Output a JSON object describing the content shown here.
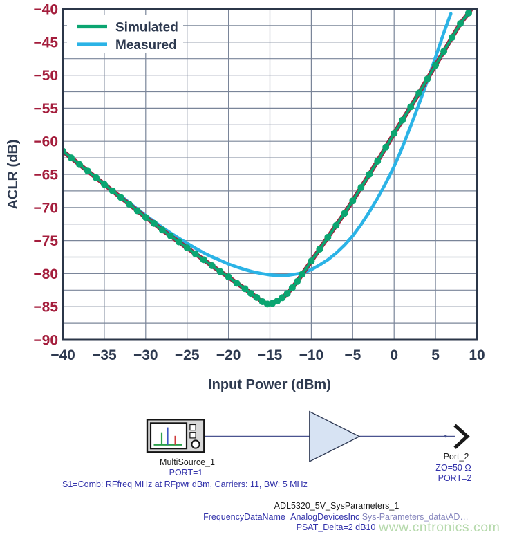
{
  "figure": {
    "watermark": "www.cntronics.com"
  },
  "chart_data": {
    "type": "line",
    "title": "",
    "xlabel": "Input Power (dBm)",
    "ylabel": "ACLR (dB)",
    "xlim": [
      -40,
      10
    ],
    "ylim": [
      -90,
      -40
    ],
    "x_tick_step": 5,
    "y_tick_step": 5,
    "x_grid_step": 5,
    "y_grid_step": 2.5,
    "grid": true,
    "legend_position": "top-left",
    "series": [
      {
        "name": "Simulated",
        "style": "line_with_markers",
        "line_color": "#a41d3c",
        "marker_color": "#0ba571",
        "x": [
          -40,
          -39,
          -38,
          -37,
          -36,
          -35,
          -34,
          -33,
          -32,
          -31,
          -30,
          -29,
          -28,
          -27,
          -26,
          -25,
          -24,
          -23,
          -22,
          -21,
          -20,
          -19,
          -18,
          -17.3,
          -16.6,
          -15.9,
          -15.3,
          -14.7,
          -14.1,
          -13.5,
          -12.9,
          -12.3,
          -11.7,
          -11.1,
          -10,
          -9,
          -8,
          -7,
          -6,
          -5,
          -4,
          -3,
          -2,
          -1,
          0,
          1,
          2,
          3,
          4,
          5,
          6,
          7,
          8,
          9,
          9.6
        ],
        "y": [
          -61.5,
          -62.5,
          -63.5,
          -64.5,
          -65.5,
          -66.5,
          -67.5,
          -68.5,
          -69.5,
          -70.5,
          -71.5,
          -72.4,
          -73.4,
          -74.3,
          -75.2,
          -76.1,
          -77.0,
          -77.9,
          -78.8,
          -79.7,
          -80.5,
          -81.45,
          -82.3,
          -83.0,
          -83.6,
          -84.25,
          -84.6,
          -84.5,
          -84.15,
          -83.65,
          -83.0,
          -82.15,
          -81.2,
          -80.1,
          -78.1,
          -76.3,
          -74.5,
          -72.7,
          -70.9,
          -69.0,
          -67.0,
          -65.0,
          -63.0,
          -60.9,
          -58.8,
          -56.8,
          -54.8,
          -52.7,
          -50.6,
          -48.5,
          -46.4,
          -44.3,
          -42.2,
          -40.6,
          -39.4
        ]
      },
      {
        "name": "Measured",
        "style": "line",
        "line_color": "#2bb3e6",
        "x": [
          -33,
          -32,
          -31,
          -30,
          -29,
          -28,
          -27,
          -26,
          -25,
          -24,
          -23,
          -22,
          -21,
          -20,
          -19,
          -18,
          -17,
          -16,
          -15,
          -14,
          -13,
          -12,
          -11,
          -10,
          -9,
          -8,
          -7,
          -6,
          -5,
          -4,
          -3,
          -2,
          -1,
          0,
          1,
          2,
          3,
          4,
          5,
          6,
          6.85
        ],
        "y": [
          -68.25,
          -69.25,
          -70.25,
          -71.2,
          -72.1,
          -73.0,
          -73.85,
          -74.65,
          -75.4,
          -76.15,
          -76.85,
          -77.45,
          -78.0,
          -78.55,
          -79.0,
          -79.4,
          -79.75,
          -80.0,
          -80.2,
          -80.3,
          -80.3,
          -80.1,
          -79.9,
          -79.4,
          -78.7,
          -77.9,
          -76.9,
          -75.7,
          -74.3,
          -72.6,
          -70.7,
          -68.6,
          -66.3,
          -63.8,
          -60.9,
          -57.7,
          -54.4,
          -50.9,
          -47.3,
          -43.6,
          -40.7
        ]
      }
    ]
  },
  "schematic": {
    "source": {
      "title": "MultiSource_1",
      "param1": "PORT=1",
      "note": "S1=Comb: RFfreq MHz at RFpwr dBm, Carriers: 11, BW: 5 MHz"
    },
    "amplifier": {
      "title": "ADL5320_5V_SysParameters_1",
      "param1a": "FrequencyDataName=AnalogDevicesInc",
      "param1b": " Sys-Parameters_data\\AD…",
      "param2": "PSAT_Delta=2 dB10"
    },
    "port": {
      "title": "Port_2",
      "param1": "ZO=50 Ω",
      "param2": "PORT=2"
    }
  },
  "colors": {
    "frame": "#2b3648",
    "grid": "#7a8599",
    "y_tick_text": "#a41d3c",
    "x_tick_text": "#2e3a50",
    "axis_title_text": "#2e3a50",
    "legend_text": "#2e3a50",
    "simulated_marker": "#0ba571",
    "simulated_line": "#a41d3c",
    "measured_line": "#2bb3e6",
    "wire": "#4a5490",
    "amp_fill": "#d7e3f3",
    "amp_stroke": "#2a3550",
    "schematic_text_blue": "#3232aa",
    "watermark_text": "#b5d9ab"
  }
}
